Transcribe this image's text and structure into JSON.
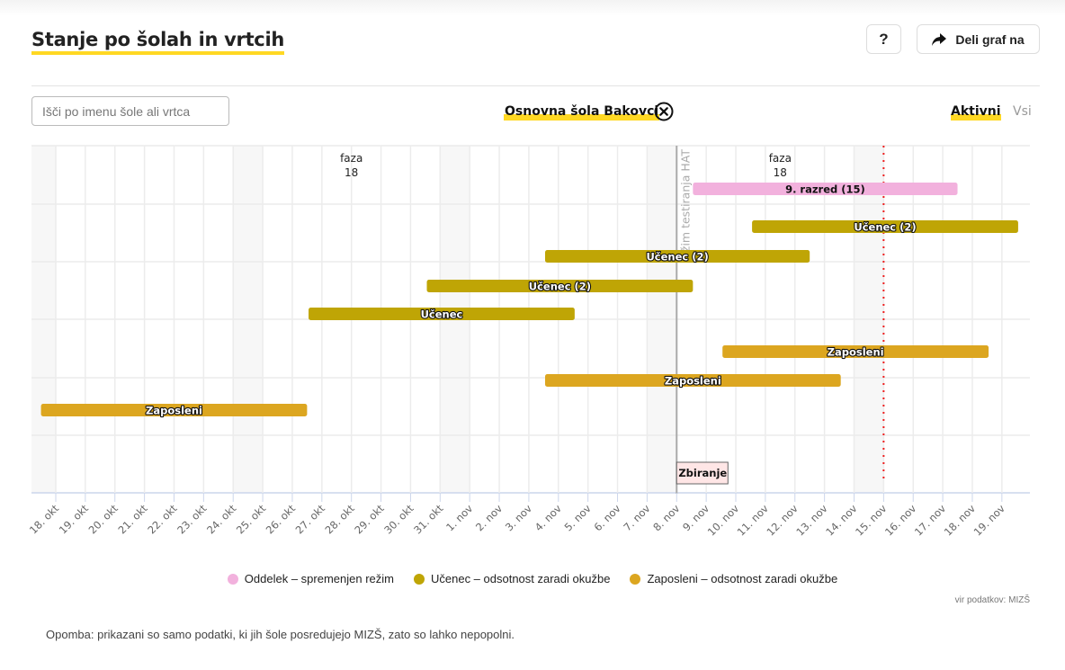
{
  "header": {
    "title": "Stanje po šolah in vrtcih",
    "help_label": "?",
    "share_label": "Deli graf na",
    "share_icon": "share-arrow-icon"
  },
  "controls": {
    "search_placeholder": "Išči po imenu šole ali vrtca",
    "search_value": "",
    "selected_school": "Osnovna šola Bakovci",
    "clear_icon": "close-circle-icon",
    "filters": [
      {
        "label": "Aktivni",
        "active": true
      },
      {
        "label": "Vsi",
        "active": false
      }
    ]
  },
  "colors": {
    "accent": "#ffd823",
    "oddelek": "#f2b1dd",
    "ucenec": "#bfa505",
    "zaposleni": "#dca620",
    "today_line": "#ee2222",
    "marker_line": "#aaaaaa",
    "flag_bg": "#ffe6e6"
  },
  "chart_data": {
    "type": "gantt",
    "title": "Stanje po šolah in vrtcih",
    "x_axis": {
      "type": "date",
      "ticks": [
        "18. okt",
        "19. okt",
        "20. okt",
        "21. okt",
        "22. okt",
        "23. okt",
        "24. okt",
        "25. okt",
        "26. okt",
        "27. okt",
        "28. okt",
        "29. okt",
        "30. okt",
        "31. okt",
        "1. nov",
        "2. nov",
        "3. nov",
        "4. nov",
        "5. nov",
        "6. nov",
        "7. nov",
        "8. nov",
        "9. nov",
        "10. nov",
        "11. nov",
        "12. nov",
        "13. nov",
        "14. nov",
        "15. nov",
        "16. nov",
        "17. nov",
        "18. nov",
        "19. nov"
      ],
      "range_days": [
        -0.85,
        32.85
      ]
    },
    "weekends": [
      [
        -1,
        0
      ],
      [
        6,
        7
      ],
      [
        13,
        14
      ],
      [
        20,
        21
      ],
      [
        27,
        28
      ]
    ],
    "phase_labels": [
      {
        "line1": "faza",
        "line2": "18",
        "day": 10
      },
      {
        "line1": "faza",
        "line2": "18",
        "day": 24.5
      }
    ],
    "markers": [
      {
        "label": "režim testiranja HAT",
        "day": 21,
        "style": "solid-gray"
      },
      {
        "label": "",
        "day": 28,
        "style": "dotted-red"
      }
    ],
    "flags": [
      {
        "label": "Zbiranje",
        "day": 21
      }
    ],
    "bars": [
      {
        "label": "9. razred (15)",
        "category": "oddelek",
        "start": 21.55,
        "end": 30.5,
        "row": 0
      },
      {
        "label": "Učenec (2)",
        "category": "ucenec",
        "start": 23.55,
        "end": 32.55,
        "row": 1
      },
      {
        "label": "Učenec (2)",
        "category": "ucenec",
        "start": 16.55,
        "end": 25.5,
        "row": 2
      },
      {
        "label": "Učenec (2)",
        "category": "ucenec",
        "start": 12.55,
        "end": 21.55,
        "row": 3
      },
      {
        "label": "Učenec",
        "category": "ucenec",
        "start": 8.55,
        "end": 17.55,
        "row": 4
      },
      {
        "label": "Zaposleni",
        "category": "zaposleni",
        "start": 22.55,
        "end": 31.55,
        "row": 5
      },
      {
        "label": "Zaposleni",
        "category": "zaposleni",
        "start": 16.55,
        "end": 26.55,
        "row": 6
      },
      {
        "label": "Zaposleni",
        "category": "zaposleni",
        "start": -0.5,
        "end": 8.5,
        "row": 7
      }
    ],
    "legend": [
      {
        "label": "Oddelek – spremenjen režim",
        "category": "oddelek"
      },
      {
        "label": "Učenec – odsotnost zaradi okužbe",
        "category": "ucenec"
      },
      {
        "label": "Zaposleni – odsotnost zaradi okužbe",
        "category": "zaposleni"
      }
    ],
    "legend_position": "bottom-center"
  },
  "footer": {
    "source": "vir podatkov: MIZŠ",
    "note": "Opomba: prikazani so samo podatki, ki jih šole posredujejo MIZŠ, zato so lahko nepopolni."
  }
}
